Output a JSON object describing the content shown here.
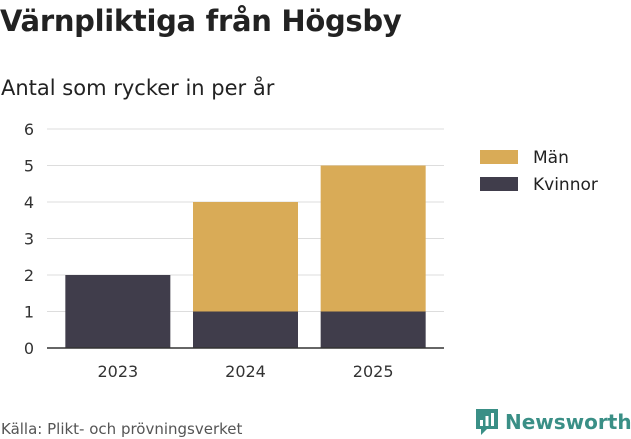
{
  "chart_data": {
    "type": "bar",
    "stacked": true,
    "title": "Värnpliktiga från Högsby",
    "subtitle": "Antal som rycker in per år",
    "categories": [
      "2023",
      "2024",
      "2025"
    ],
    "series": [
      {
        "name": "Kvinnor",
        "values": [
          2,
          1,
          1
        ],
        "color": "#403d4b"
      },
      {
        "name": "Män",
        "values": [
          0,
          3,
          4
        ],
        "color": "#d9ab57"
      }
    ],
    "legend_order": [
      "Män",
      "Kvinnor"
    ],
    "ylim": [
      0,
      6
    ],
    "yticks": [
      0,
      1,
      2,
      3,
      4,
      5,
      6
    ],
    "grid": true,
    "legend_position": "right"
  },
  "footer": {
    "source": "Källa: Plikt- och prövningsverket",
    "logo_text": "Newsworthy"
  }
}
